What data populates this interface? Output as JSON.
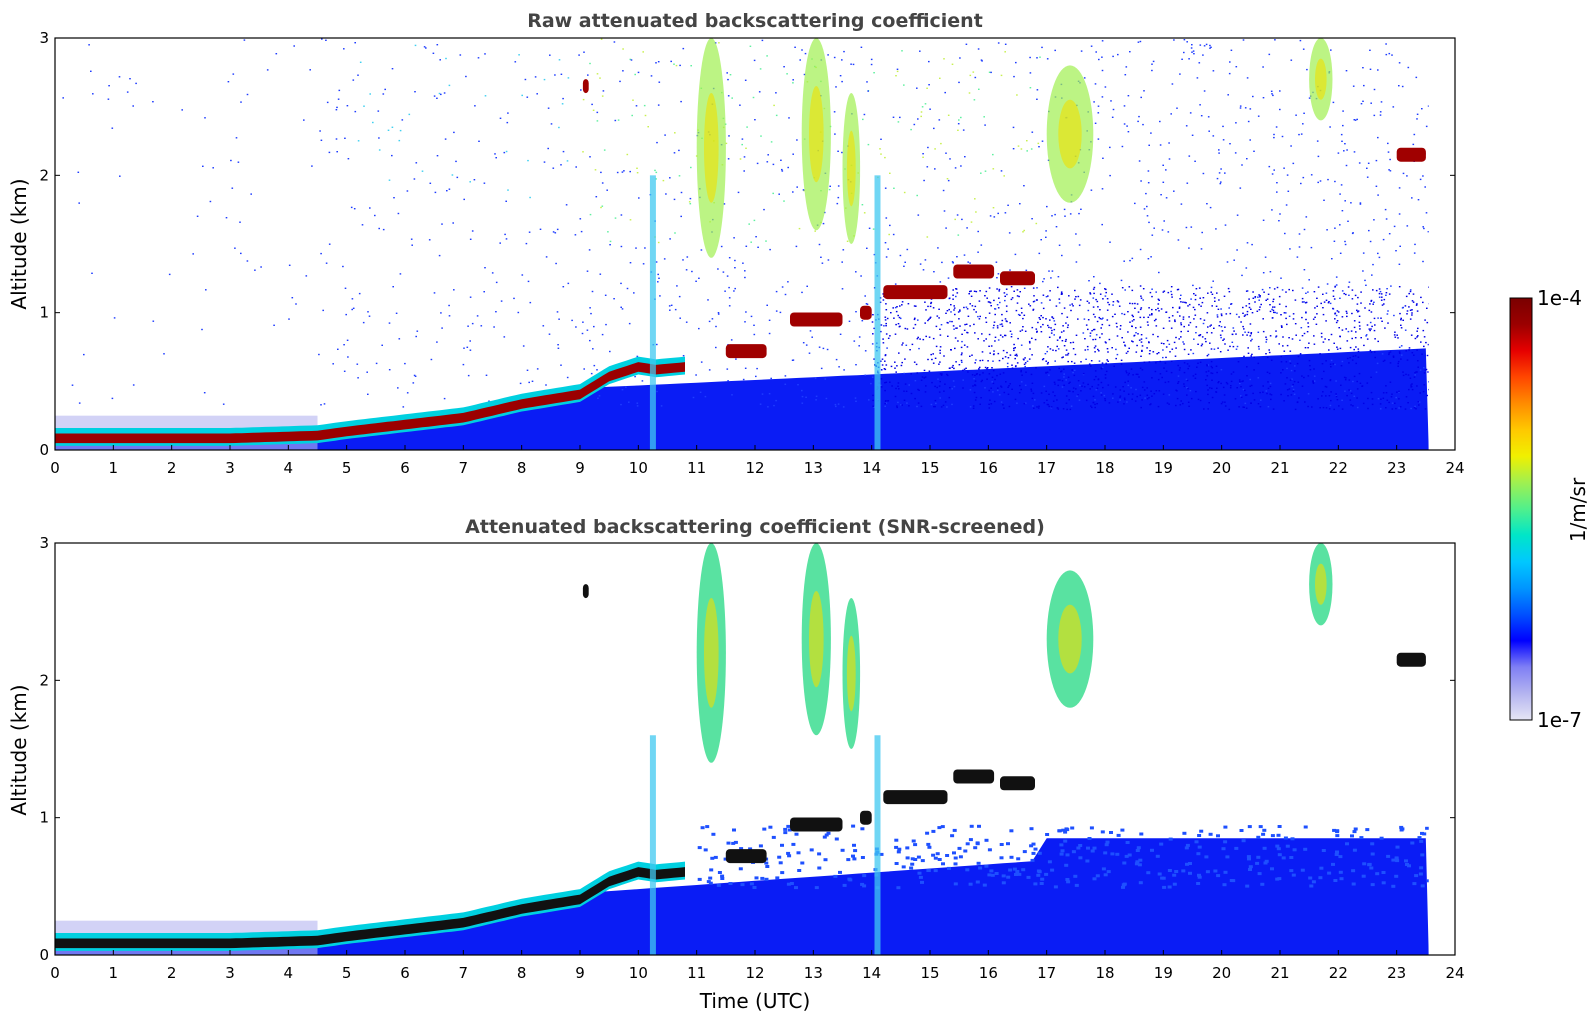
{
  "chart_data": [
    {
      "type": "heatmap",
      "title": "Raw attenuated backscattering coefficient",
      "xlabel": "",
      "ylabel": "Altitude (km)",
      "xlim": [
        0,
        24
      ],
      "ylim": [
        0,
        3
      ],
      "xticks": [
        "0",
        "1",
        "2",
        "3",
        "4",
        "5",
        "6",
        "7",
        "8",
        "9",
        "10",
        "11",
        "12",
        "13",
        "14",
        "15",
        "16",
        "17",
        "18",
        "19",
        "20",
        "21",
        "22",
        "23",
        "24"
      ],
      "yticks": [
        "0",
        "1",
        "2",
        "3"
      ],
      "data_end_time": 23.55,
      "boundary_layer_top_km": [
        {
          "t": 0,
          "z": 0.1
        },
        {
          "t": 3,
          "z": 0.1
        },
        {
          "t": 4.5,
          "z": 0.12
        },
        {
          "t": 5,
          "z": 0.15
        },
        {
          "t": 6,
          "z": 0.2
        },
        {
          "t": 7,
          "z": 0.25
        },
        {
          "t": 8,
          "z": 0.35
        },
        {
          "t": 9,
          "z": 0.42
        },
        {
          "t": 9.5,
          "z": 0.55
        },
        {
          "t": 10,
          "z": 0.62
        },
        {
          "t": 10.3,
          "z": 0.6
        },
        {
          "t": 10.8,
          "z": 0.62
        }
      ],
      "cloud_layers": [
        {
          "t0": 11.5,
          "t1": 12.2,
          "z": 0.72
        },
        {
          "t0": 12.6,
          "t1": 13.5,
          "z": 0.95
        },
        {
          "t0": 13.8,
          "t1": 14.0,
          "z": 1.0
        },
        {
          "t0": 14.2,
          "t1": 15.3,
          "z": 1.15
        },
        {
          "t0": 15.4,
          "t1": 16.1,
          "z": 1.3
        },
        {
          "t0": 16.2,
          "t1": 16.8,
          "z": 1.25
        },
        {
          "t0": 23.0,
          "t1": 23.5,
          "z": 2.15
        },
        {
          "t0": 9.05,
          "t1": 9.15,
          "z": 2.65
        }
      ],
      "aerosol_plumes": [
        {
          "t0": 11.0,
          "t1": 11.5,
          "z0": 1.4,
          "z1": 3.0
        },
        {
          "t0": 12.8,
          "t1": 13.3,
          "z0": 1.6,
          "z1": 3.0
        },
        {
          "t0": 13.5,
          "t1": 13.8,
          "z0": 1.5,
          "z1": 2.6
        },
        {
          "t0": 17.0,
          "t1": 17.8,
          "z0": 1.8,
          "z1": 2.8
        },
        {
          "t0": 21.5,
          "t1": 21.9,
          "z0": 2.4,
          "z1": 3.0
        }
      ]
    },
    {
      "type": "heatmap",
      "title": "Attenuated backscattering coefficient (SNR-screened)",
      "xlabel": "Time (UTC)",
      "ylabel": "Altitude (km)",
      "xlim": [
        0,
        24
      ],
      "ylim": [
        0,
        3
      ],
      "xticks": [
        "0",
        "1",
        "2",
        "3",
        "4",
        "5",
        "6",
        "7",
        "8",
        "9",
        "10",
        "11",
        "12",
        "13",
        "14",
        "15",
        "16",
        "17",
        "18",
        "19",
        "20",
        "21",
        "22",
        "23",
        "24"
      ],
      "yticks": [
        "0",
        "1",
        "2",
        "3"
      ],
      "data_end_time": 23.55
    }
  ],
  "colorbar": {
    "max_label": "1e-4",
    "min_label": "1e-7",
    "label": "1/m/sr",
    "colors": [
      "#e6e6f5",
      "#b4b4f0",
      "#8080f5",
      "#0000ff",
      "#0050ff",
      "#0096ff",
      "#00c8ff",
      "#00e6c8",
      "#50f08c",
      "#a0f050",
      "#f0f000",
      "#ffc800",
      "#ff8c00",
      "#ff4600",
      "#e60000",
      "#9b0000",
      "#7a0000"
    ]
  }
}
